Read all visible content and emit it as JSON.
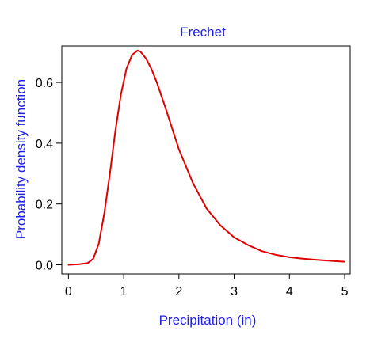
{
  "chart_data": {
    "type": "line",
    "title": "Frechet",
    "xlabel": "Precipitation (in)",
    "ylabel": "Probability density function",
    "xlim": [
      -0.12,
      5.1
    ],
    "ylim": [
      -0.03,
      0.72
    ],
    "x_ticks": [
      {
        "value": 0,
        "label": "0"
      },
      {
        "value": 1,
        "label": "1"
      },
      {
        "value": 2,
        "label": "2"
      },
      {
        "value": 3,
        "label": "3"
      },
      {
        "value": 4,
        "label": "4"
      },
      {
        "value": 5,
        "label": "5"
      }
    ],
    "y_ticks": [
      {
        "value": 0.0,
        "label": "0.0"
      },
      {
        "value": 0.2,
        "label": "0.2"
      },
      {
        "value": 0.4,
        "label": "0.4"
      },
      {
        "value": 0.6,
        "label": "0.6"
      }
    ],
    "grid": false,
    "series": [
      {
        "color": "#e00000",
        "x": [
          0.0,
          0.2,
          0.35,
          0.45,
          0.55,
          0.65,
          0.75,
          0.85,
          0.95,
          1.05,
          1.15,
          1.25,
          1.3,
          1.4,
          1.5,
          1.6,
          1.75,
          2.0,
          2.25,
          2.5,
          2.75,
          3.0,
          3.25,
          3.5,
          3.75,
          4.0,
          4.25,
          4.5,
          4.75,
          5.0
        ],
        "y": [
          0.0,
          0.002,
          0.006,
          0.02,
          0.07,
          0.17,
          0.3,
          0.44,
          0.56,
          0.645,
          0.69,
          0.705,
          0.702,
          0.68,
          0.645,
          0.6,
          0.52,
          0.38,
          0.27,
          0.185,
          0.13,
          0.09,
          0.065,
          0.045,
          0.033,
          0.025,
          0.02,
          0.016,
          0.013,
          0.01
        ]
      }
    ]
  },
  "colors": {
    "title": "#1f1fe6",
    "axis_labels": "#1f1fe6",
    "curve": "#e00000",
    "axes": "#000000"
  }
}
